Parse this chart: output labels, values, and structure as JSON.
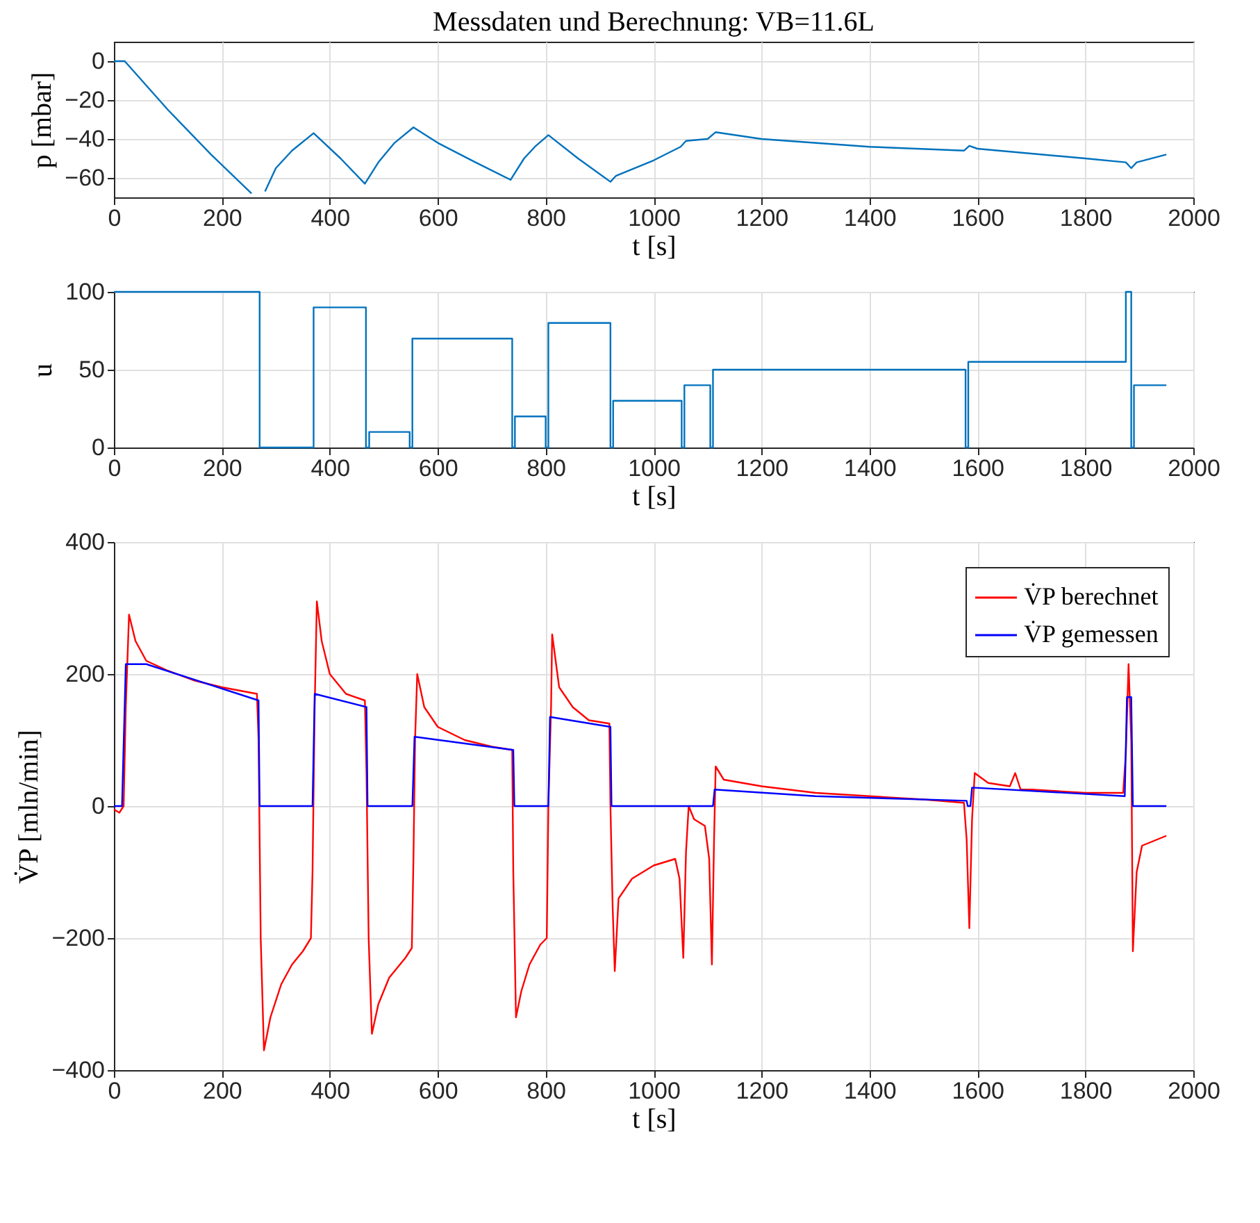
{
  "chart_data": [
    {
      "type": "line",
      "title": "Messdaten und Berechnung: VB=11.6L",
      "xlabel": "t [s]",
      "ylabel": "p [mbar]",
      "color": "#0072bd",
      "x": [
        0,
        20,
        100,
        180,
        255,
        265,
        270,
        280,
        300,
        330,
        370,
        420,
        465,
        490,
        520,
        555,
        600,
        670,
        735,
        760,
        780,
        805,
        860,
        920,
        930,
        1000,
        1050,
        1060,
        1100,
        1115,
        1200,
        1400,
        1575,
        1585,
        1600,
        1800,
        1875,
        1885,
        1895,
        1950
      ],
      "values": [
        0,
        0,
        -25,
        -48,
        -68,
        null,
        null,
        -67,
        -55,
        -46,
        -37,
        -50,
        -63,
        -52,
        -42,
        -34,
        -42,
        -52,
        -61,
        -50,
        -44,
        -38,
        -50,
        -62,
        -59,
        -51,
        -44,
        -41,
        -40,
        -36.5,
        -40,
        -44,
        -46,
        -43.5,
        -45,
        -50,
        -52,
        -55,
        -52,
        -48
      ],
      "xlim": [
        0,
        2000
      ],
      "xticks": [
        0,
        200,
        400,
        600,
        800,
        1000,
        1200,
        1400,
        1600,
        1800,
        2000
      ],
      "ylim": [
        -70,
        10
      ],
      "yticks": [
        -60,
        -40,
        -20,
        0
      ],
      "grid": true
    },
    {
      "type": "step",
      "xlabel": "t [s]",
      "ylabel": "u",
      "color": "#0072bd",
      "x": [
        0,
        270,
        370,
        467,
        473,
        548,
        553,
        738,
        743,
        800,
        805,
        920,
        925,
        1052,
        1057,
        1105,
        1110,
        1578,
        1583,
        1875,
        1885,
        1890,
        1950
      ],
      "values": [
        100,
        0,
        90,
        0,
        10,
        0,
        70,
        0,
        20,
        0,
        80,
        0,
        30,
        0,
        40,
        0,
        50,
        0,
        55,
        100,
        0,
        40,
        40
      ],
      "xlim": [
        0,
        2000
      ],
      "xticks": [
        0,
        200,
        400,
        600,
        800,
        1000,
        1200,
        1400,
        1600,
        1800,
        2000
      ],
      "ylim": [
        0,
        100
      ],
      "yticks": [
        0,
        50,
        100
      ],
      "grid": true
    },
    {
      "type": "line",
      "xlabel": "t [s]",
      "ylabel": "V̇P [mln/min]",
      "legend": "top right",
      "series": [
        {
          "name": "V̇P berechnet",
          "color": "#ff0000",
          "x": [
            0,
            10,
            18,
            22,
            28,
            40,
            60,
            100,
            150,
            200,
            265,
            268,
            272,
            278,
            290,
            310,
            330,
            350,
            365,
            368,
            372,
            376,
            385,
            400,
            430,
            465,
            468,
            472,
            478,
            490,
            510,
            540,
            552,
            555,
            558,
            562,
            575,
            600,
            650,
            700,
            738,
            740,
            745,
            755,
            770,
            790,
            802,
            805,
            810,
            812,
            825,
            850,
            880,
            918,
            920,
            924,
            928,
            935,
            960,
            1000,
            1040,
            1048,
            1055,
            1060,
            1065,
            1075,
            1095,
            1103,
            1108,
            1112,
            1115,
            1130,
            1200,
            1300,
            1400,
            1500,
            1575,
            1580,
            1585,
            1590,
            1595,
            1620,
            1660,
            1670,
            1680,
            1700,
            1800,
            1870,
            1875,
            1880,
            1885,
            1888,
            1895,
            1905,
            1950
          ],
          "values": [
            -5,
            -10,
            0,
            150,
            290,
            250,
            220,
            205,
            190,
            180,
            170,
            100,
            -200,
            -370,
            -320,
            -270,
            -240,
            -220,
            -200,
            -100,
            150,
            310,
            250,
            200,
            170,
            160,
            50,
            -200,
            -345,
            -300,
            -260,
            -230,
            -215,
            -80,
            100,
            200,
            150,
            120,
            100,
            90,
            85,
            -100,
            -320,
            -280,
            -240,
            -210,
            -200,
            0,
            150,
            260,
            180,
            150,
            130,
            125,
            0,
            -150,
            -250,
            -140,
            -110,
            -90,
            -80,
            -110,
            -230,
            -70,
            0,
            -20,
            -30,
            -80,
            -240,
            -50,
            60,
            40,
            30,
            20,
            15,
            10,
            5,
            -50,
            -185,
            -20,
            50,
            35,
            30,
            50,
            25,
            25,
            20,
            20,
            80,
            215,
            100,
            -220,
            -100,
            -60,
            -45
          ]
        },
        {
          "name": "V̇P gemessen",
          "color": "#0000ff",
          "x": [
            0,
            15,
            22,
            60,
            268,
            270,
            368,
            372,
            468,
            470,
            553,
            557,
            740,
            742,
            805,
            808,
            920,
            922,
            1110,
            1113,
            1300,
            1580,
            1582,
            1587,
            1590,
            1873,
            1877,
            1885,
            1888,
            1950
          ],
          "values": [
            0,
            0,
            215,
            215,
            160,
            0,
            0,
            170,
            150,
            0,
            0,
            105,
            85,
            0,
            0,
            135,
            120,
            0,
            0,
            25,
            15,
            8,
            0,
            0,
            28,
            15,
            165,
            165,
            0,
            0
          ]
        }
      ],
      "xlim": [
        0,
        2000
      ],
      "xticks": [
        0,
        200,
        400,
        600,
        800,
        1000,
        1200,
        1400,
        1600,
        1800,
        2000
      ],
      "ylim": [
        -400,
        400
      ],
      "yticks": [
        -400,
        -200,
        0,
        200,
        400
      ],
      "grid": true
    }
  ]
}
